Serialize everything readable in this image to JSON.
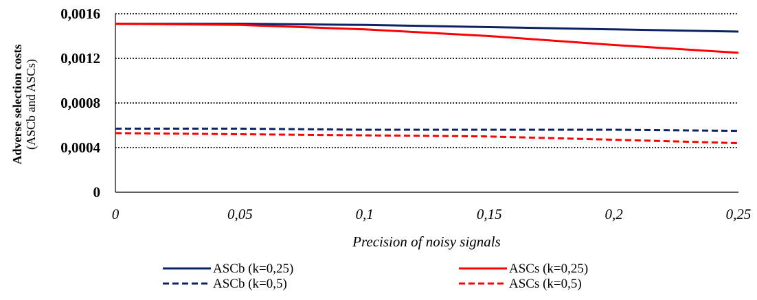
{
  "chart_data": {
    "type": "line",
    "xlabel": "Precision of noisy signals",
    "ylabel": "Adverse selection costs",
    "ylabel_sub": "(ASCb and ASCs)",
    "xlim": [
      0,
      0.25
    ],
    "ylim": [
      0,
      0.0016
    ],
    "x_ticks": [
      "0",
      "0,05",
      "0,1",
      "0,15",
      "0,2",
      "0,25"
    ],
    "y_ticks": [
      "0",
      "0,0004",
      "0,0008",
      "0,0012",
      "0,0016"
    ],
    "grid": "horizontal-dotted",
    "legend_position": "bottom",
    "x": [
      0,
      0.05,
      0.1,
      0.15,
      0.2,
      0.25
    ],
    "series": [
      {
        "name": "ASCb (k=0,25)",
        "color": "#0b2266",
        "style": "solid",
        "values": [
          0.00151,
          0.00151,
          0.0015,
          0.00148,
          0.00146,
          0.00144
        ]
      },
      {
        "name": "ASCs (k=0,25)",
        "color": "#ff0000",
        "style": "solid",
        "values": [
          0.00151,
          0.0015,
          0.00146,
          0.0014,
          0.00132,
          0.00125
        ]
      },
      {
        "name": "ASCb (k=0,5)",
        "color": "#0b2266",
        "style": "dashed",
        "values": [
          0.00057,
          0.00057,
          0.00056,
          0.00056,
          0.00056,
          0.00055
        ]
      },
      {
        "name": "ASCs (k=0,5)",
        "color": "#ff0000",
        "style": "dashed",
        "values": [
          0.00053,
          0.00052,
          0.00051,
          0.0005,
          0.00047,
          0.00044
        ]
      }
    ]
  }
}
